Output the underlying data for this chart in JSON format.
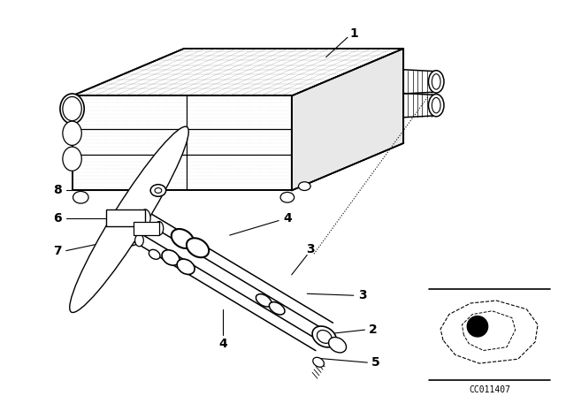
{
  "bg_color": "#ffffff",
  "line_color": "#000000",
  "fig_width": 6.4,
  "fig_height": 4.48,
  "dpi": 100,
  "watermark_text": "CC011407"
}
